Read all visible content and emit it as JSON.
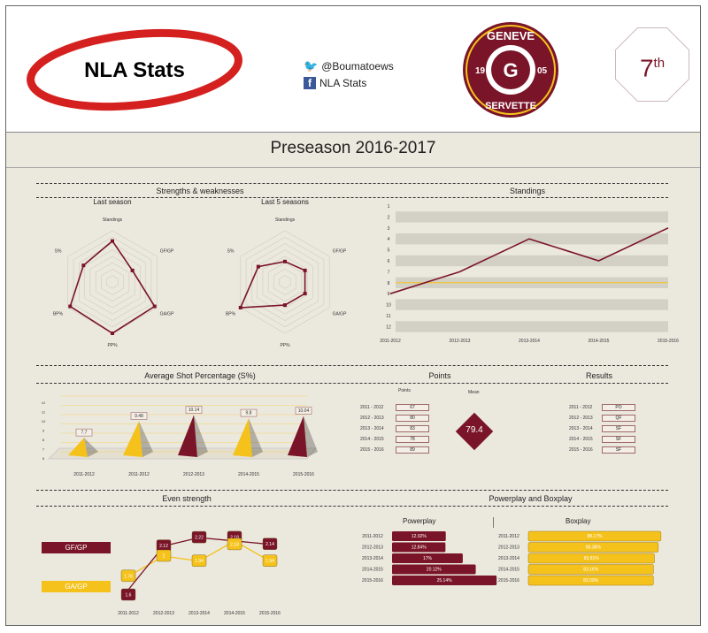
{
  "header": {
    "logo_text": "NLA Stats",
    "twitter_handle": "@Boumatoews",
    "facebook_label": "NLA Stats",
    "team_logo": {
      "top": "GENEVE",
      "bottom": "SERVETTE",
      "left": "19",
      "right": "05"
    },
    "rank": "7",
    "rank_suffix": "th"
  },
  "title": "Preseason 2016-2017",
  "colors": {
    "primary": "#7a1428",
    "accent": "#f5c21b",
    "background": "#ebe8de"
  },
  "sections": {
    "strengths": "Strengths & weaknesses",
    "standings": "Standings",
    "shot_pct": "Average Shot Percentage (S%)",
    "points": "Points",
    "results": "Results",
    "even_strength": "Even strength",
    "pp_bp": "Powerplay and Boxplay"
  },
  "chart_data": [
    {
      "type": "radar",
      "title": "Last season",
      "axes": [
        "Standings",
        "GF/GP",
        "GA/GP",
        "PP%",
        "BP%",
        "S%"
      ],
      "values": [
        0.8,
        0.45,
        0.95,
        1.0,
        0.95,
        0.65
      ],
      "range": [
        0,
        1
      ]
    },
    {
      "type": "radar",
      "title": "Last 5 seasons",
      "axes": [
        "Standings",
        "GF/GP",
        "GA/GP",
        "PP%",
        "BP%",
        "S%"
      ],
      "values": [
        0.4,
        0.45,
        0.45,
        0.45,
        1.0,
        0.6
      ],
      "range": [
        0,
        1
      ]
    },
    {
      "type": "line",
      "categories": [
        "2011-2012",
        "2012-2013",
        "2013-2014",
        "2014-2015",
        "2015-2016"
      ],
      "values": [
        9,
        7,
        4,
        6,
        3
      ],
      "yticks": [
        1,
        2,
        3,
        4,
        5,
        6,
        7,
        8,
        9,
        10,
        11,
        12
      ],
      "ylim": [
        1,
        12
      ],
      "y_reversed": true,
      "reference_line": 8
    },
    {
      "type": "bar",
      "style": "3d-pyramid",
      "categories": [
        "2011-2012",
        "2011-2012",
        "2012-2013",
        "2014-2015",
        "2015-2016"
      ],
      "values": [
        7.7,
        9.48,
        10.14,
        9.8,
        10.04
      ],
      "value_labels": [
        "7.7",
        "9.48",
        "10.14",
        "9.8",
        "10.04"
      ],
      "colors": [
        "#f5c21b",
        "#f5c21b",
        "#7a1428",
        "#f5c21b",
        "#7a1428"
      ],
      "yticks": [
        6,
        7,
        8,
        9,
        10,
        11,
        12
      ],
      "ylim": [
        6,
        12
      ]
    },
    {
      "type": "line",
      "categories": [
        "2011-2012",
        "2012-2013",
        "2013-2014",
        "2014-2015",
        "2015-2016"
      ],
      "series": [
        {
          "name": "GF/GP",
          "values": [
            1.6,
            2.12,
            2.22,
            2.18,
            2.14
          ],
          "labels": [
            "1.6",
            "2.12",
            "2.22",
            "2.18",
            "2.14"
          ],
          "color": "#7a1428"
        },
        {
          "name": "GA/GP",
          "values": [
            1.76,
            2,
            1.94,
            2.18,
            1.94
          ],
          "labels": [
            "1.76",
            "2",
            "1.94",
            "2.18",
            "1.94"
          ],
          "color": "#f5c21b"
        }
      ]
    },
    {
      "type": "bar",
      "orientation": "horizontal",
      "title": "Powerplay",
      "categories": [
        "2011-2012",
        "2012-2013",
        "2013-2014",
        "2014-2015",
        "2015-2016"
      ],
      "values": [
        12.92,
        12.84,
        17,
        20.12,
        25.14
      ],
      "value_labels": [
        "12.92%",
        "12.84%",
        "17%",
        "20.12%",
        "25.14%"
      ]
    },
    {
      "type": "bar",
      "orientation": "horizontal",
      "title": "Boxplay",
      "categories": [
        "2011-2012",
        "2012-2013",
        "2013-2014",
        "2014-2015",
        "2015-2016"
      ],
      "values": [
        88.17,
        86.38,
        83.81,
        83.16,
        83.09
      ],
      "value_labels": [
        "88.17%",
        "86.38%",
        "83.81%",
        "83.16%",
        "83.09%"
      ]
    }
  ],
  "points": {
    "header": "Points",
    "mean_header": "Mean",
    "mean": "79.4",
    "rows": [
      {
        "season": "2011 - 2012",
        "value": "67"
      },
      {
        "season": "2012 - 2013",
        "value": "80"
      },
      {
        "season": "2013 - 2014",
        "value": "83"
      },
      {
        "season": "2014 - 2015",
        "value": "78"
      },
      {
        "season": "2015 - 2016",
        "value": "89"
      }
    ]
  },
  "results": {
    "rows": [
      {
        "season": "2011 - 2012",
        "value": "PO"
      },
      {
        "season": "2012 - 2013",
        "value": "QF"
      },
      {
        "season": "2013 - 2014",
        "value": "SF"
      },
      {
        "season": "2014 - 2015",
        "value": "SF"
      },
      {
        "season": "2015 - 2016",
        "value": "SF"
      }
    ]
  }
}
